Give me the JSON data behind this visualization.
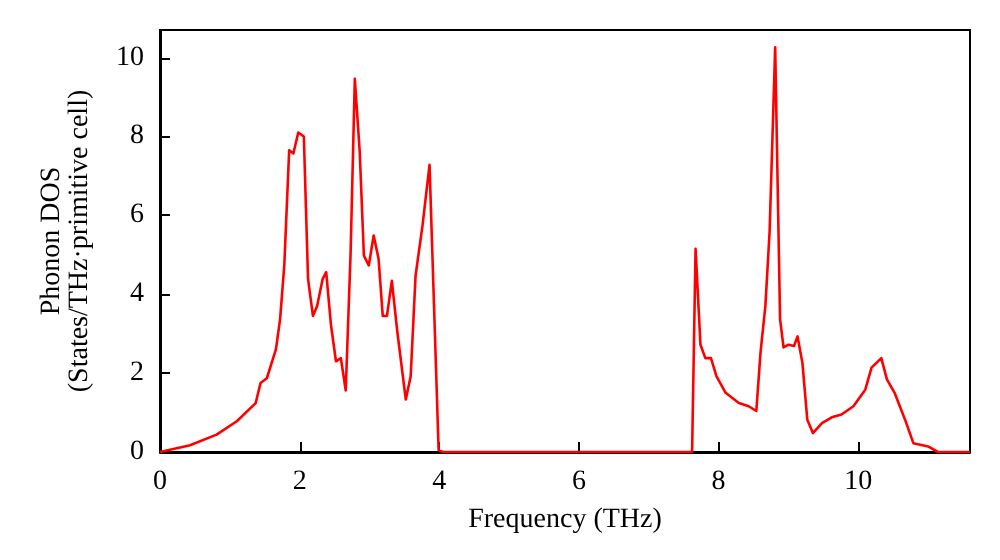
{
  "chart_data": {
    "type": "line",
    "xlabel": "Frequency (THz)",
    "ylabel": "Phonon DOS\n(States/THz·primitive cell)",
    "xlim": [
      0,
      11.6
    ],
    "ylim": [
      0,
      10.7
    ],
    "xticks": [
      0,
      2,
      4,
      6,
      8,
      10
    ],
    "yticks": [
      0,
      2,
      4,
      6,
      8,
      10
    ],
    "grid": false,
    "marker": "none",
    "line_style": "solid",
    "series": [
      {
        "color": "#ff0000",
        "x": [
          0,
          0.43,
          0.81,
          1.1,
          1.37,
          1.44,
          1.53,
          1.66,
          1.72,
          1.78,
          1.85,
          1.91,
          1.98,
          2.06,
          2.12,
          2.19,
          2.25,
          2.33,
          2.38,
          2.45,
          2.52,
          2.59,
          2.66,
          2.73,
          2.79,
          2.86,
          2.92,
          2.99,
          3.06,
          3.13,
          3.19,
          3.25,
          3.32,
          3.4,
          3.52,
          3.59,
          3.66,
          3.76,
          3.86,
          3.99,
          4.05,
          7.62,
          7.67,
          7.74,
          7.81,
          7.89,
          7.97,
          8.1,
          8.29,
          8.43,
          8.54,
          8.6,
          8.67,
          8.73,
          8.81,
          8.88,
          8.93,
          9.0,
          9.08,
          9.13,
          9.2,
          9.27,
          9.35,
          9.48,
          9.62,
          9.76,
          9.93,
          10.1,
          10.19,
          10.33,
          10.41,
          10.52,
          10.67,
          10.79,
          11.0,
          11.14,
          11.6
        ],
        "values": [
          0,
          0.17,
          0.44,
          0.78,
          1.24,
          1.75,
          1.87,
          2.6,
          3.37,
          4.73,
          7.65,
          7.57,
          8.1,
          8.0,
          4.39,
          3.45,
          3.7,
          4.39,
          4.56,
          3.2,
          2.3,
          2.38,
          1.56,
          5.07,
          9.46,
          7.62,
          4.98,
          4.73,
          5.49,
          4.9,
          3.45,
          3.45,
          4.34,
          3.03,
          1.33,
          1.92,
          4.47,
          5.75,
          7.28,
          0.05,
          0,
          0,
          5.15,
          2.72,
          2.38,
          2.38,
          1.92,
          1.5,
          1.24,
          1.16,
          1.04,
          2.52,
          3.71,
          5.58,
          10.26,
          3.37,
          2.65,
          2.72,
          2.69,
          2.93,
          2.26,
          0.82,
          0.48,
          0.73,
          0.88,
          0.95,
          1.16,
          1.58,
          2.14,
          2.38,
          1.84,
          1.5,
          0.82,
          0.22,
          0.14,
          0,
          0
        ]
      }
    ]
  }
}
